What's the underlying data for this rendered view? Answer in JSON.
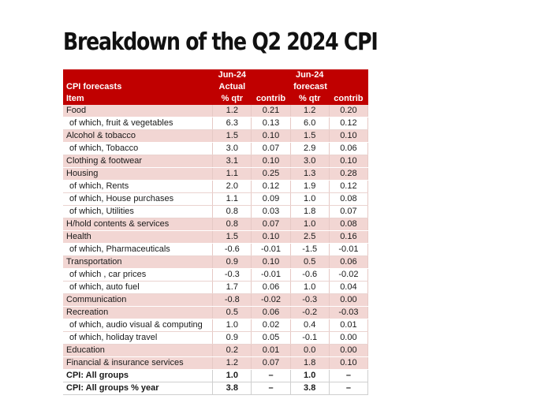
{
  "title": "Breakdown of the Q2 2024 CPI",
  "table": {
    "header": {
      "row1": [
        "",
        "Jun-24",
        "",
        "Jun-24",
        ""
      ],
      "row2": [
        "CPI forecasts",
        "Actual",
        "",
        "forecast",
        ""
      ],
      "row3": [
        "Item",
        "% qtr",
        "contrib",
        "% qtr",
        "contrib"
      ]
    },
    "rows": [
      {
        "type": "main",
        "item": "Food",
        "actual_qtr": "1.2",
        "actual_contrib": "0.21",
        "forecast_qtr": "1.2",
        "forecast_contrib": "0.20"
      },
      {
        "type": "sub",
        "item": "of which, fruit & vegetables",
        "actual_qtr": "6.3",
        "actual_contrib": "0.13",
        "forecast_qtr": "6.0",
        "forecast_contrib": "0.12"
      },
      {
        "type": "main",
        "item": "Alcohol & tobacco",
        "actual_qtr": "1.5",
        "actual_contrib": "0.10",
        "forecast_qtr": "1.5",
        "forecast_contrib": "0.10"
      },
      {
        "type": "sub",
        "item": "of which, Tobacco",
        "actual_qtr": "3.0",
        "actual_contrib": "0.07",
        "forecast_qtr": "2.9",
        "forecast_contrib": "0.06"
      },
      {
        "type": "main",
        "item": "Clothing & footwear",
        "actual_qtr": "3.1",
        "actual_contrib": "0.10",
        "forecast_qtr": "3.0",
        "forecast_contrib": "0.10"
      },
      {
        "type": "main",
        "item": "Housing",
        "actual_qtr": "1.1",
        "actual_contrib": "0.25",
        "forecast_qtr": "1.3",
        "forecast_contrib": "0.28"
      },
      {
        "type": "sub",
        "item": "of which, Rents",
        "actual_qtr": "2.0",
        "actual_contrib": "0.12",
        "forecast_qtr": "1.9",
        "forecast_contrib": "0.12"
      },
      {
        "type": "sub",
        "item": "of which, House purchases",
        "actual_qtr": "1.1",
        "actual_contrib": "0.09",
        "forecast_qtr": "1.0",
        "forecast_contrib": "0.08"
      },
      {
        "type": "sub",
        "item": "of which, Utilities",
        "actual_qtr": "0.8",
        "actual_contrib": "0.03",
        "forecast_qtr": "1.8",
        "forecast_contrib": "0.07"
      },
      {
        "type": "main",
        "item": "H/hold contents & services",
        "actual_qtr": "0.8",
        "actual_contrib": "0.07",
        "forecast_qtr": "1.0",
        "forecast_contrib": "0.08"
      },
      {
        "type": "main",
        "item": "Health",
        "actual_qtr": "1.5",
        "actual_contrib": "0.10",
        "forecast_qtr": "2.5",
        "forecast_contrib": "0.16"
      },
      {
        "type": "sub",
        "item": "of which, Pharmaceuticals",
        "actual_qtr": "-0.6",
        "actual_contrib": "-0.01",
        "forecast_qtr": "-1.5",
        "forecast_contrib": "-0.01"
      },
      {
        "type": "main",
        "item": "Transportation",
        "actual_qtr": "0.9",
        "actual_contrib": "0.10",
        "forecast_qtr": "0.5",
        "forecast_contrib": "0.06"
      },
      {
        "type": "sub",
        "item": "of which , car prices",
        "actual_qtr": "-0.3",
        "actual_contrib": "-0.01",
        "forecast_qtr": "-0.6",
        "forecast_contrib": "-0.02"
      },
      {
        "type": "sub",
        "item": "of which, auto fuel",
        "actual_qtr": "1.7",
        "actual_contrib": "0.06",
        "forecast_qtr": "1.0",
        "forecast_contrib": "0.04"
      },
      {
        "type": "main",
        "item": "Communication",
        "actual_qtr": "-0.8",
        "actual_contrib": "-0.02",
        "forecast_qtr": "-0.3",
        "forecast_contrib": "0.00"
      },
      {
        "type": "main",
        "item": "Recreation",
        "actual_qtr": "0.5",
        "actual_contrib": "0.06",
        "forecast_qtr": "-0.2",
        "forecast_contrib": "-0.03"
      },
      {
        "type": "sub",
        "item": "of which, audio visual & computing",
        "actual_qtr": "1.0",
        "actual_contrib": "0.02",
        "forecast_qtr": "0.4",
        "forecast_contrib": "0.01"
      },
      {
        "type": "sub",
        "item": "of which, holiday travel",
        "actual_qtr": "0.9",
        "actual_contrib": "0.05",
        "forecast_qtr": "-0.1",
        "forecast_contrib": "0.00"
      },
      {
        "type": "main",
        "item": "Education",
        "actual_qtr": "0.2",
        "actual_contrib": "0.01",
        "forecast_qtr": "0.0",
        "forecast_contrib": "0.00"
      },
      {
        "type": "main",
        "item": "Financial & insurance services",
        "actual_qtr": "1.2",
        "actual_contrib": "0.07",
        "forecast_qtr": "1.8",
        "forecast_contrib": "0.10"
      },
      {
        "type": "total",
        "item": "CPI: All groups",
        "actual_qtr": "1.0",
        "actual_contrib": "–",
        "forecast_qtr": "1.0",
        "forecast_contrib": "–"
      },
      {
        "type": "total",
        "item": "CPI: All groups % year",
        "actual_qtr": "3.8",
        "actual_contrib": "–",
        "forecast_qtr": "3.8",
        "forecast_contrib": "–"
      }
    ]
  },
  "colors": {
    "header_bg": "#c00000",
    "main_row_bg": "#f2d6d3",
    "sub_row_bg": "#ffffff"
  }
}
